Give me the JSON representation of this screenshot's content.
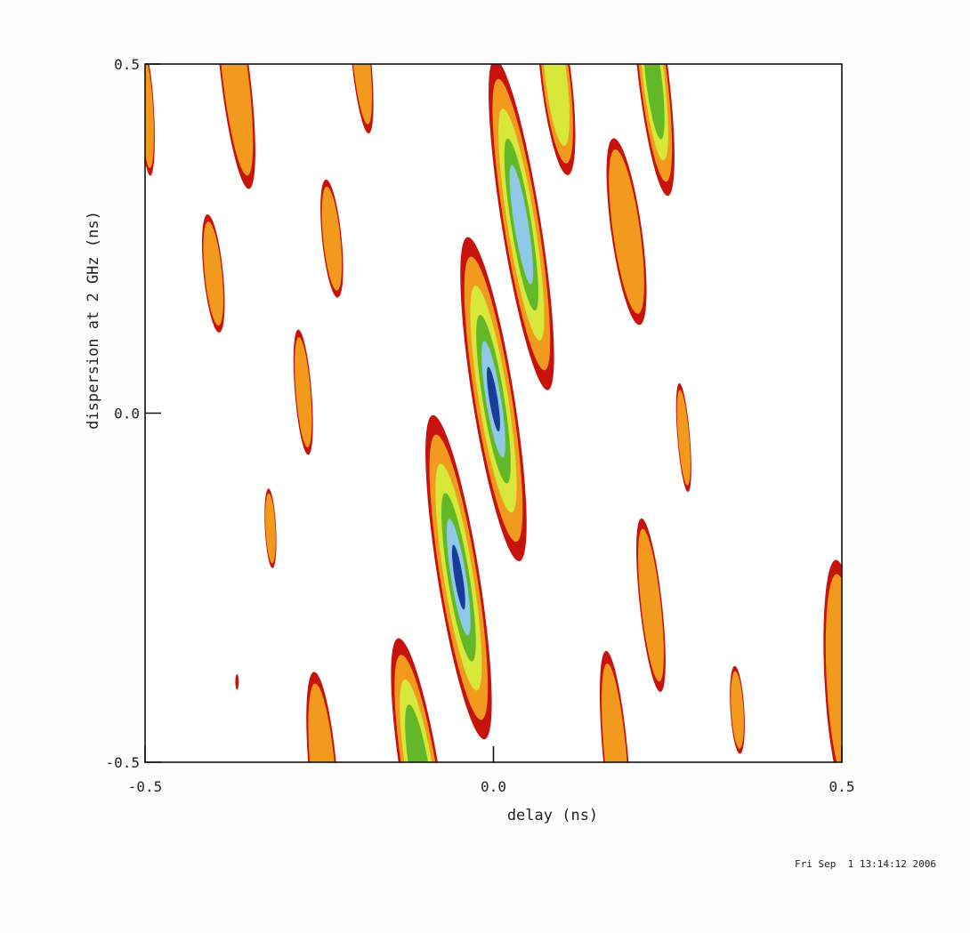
{
  "chart_data": {
    "type": "contour",
    "xlabel": "delay (ns)",
    "ylabel": "dispersion at 2 GHz (ns)",
    "xlim": [
      -0.5,
      0.5
    ],
    "ylim": [
      -0.5,
      0.5
    ],
    "x_ticks": [
      {
        "value": -0.5,
        "label": "-0.5"
      },
      {
        "value": 0.0,
        "label": "0.0"
      },
      {
        "value": 0.5,
        "label": "0.5"
      }
    ],
    "y_ticks": [
      {
        "value": 0.5,
        "label": "0.5"
      },
      {
        "value": 0.0,
        "label": "0.0"
      },
      {
        "value": -0.5,
        "label": "-0.5"
      }
    ],
    "grid": false,
    "level_colors": [
      "#c8120c",
      "#f29a1e",
      "#d7e83a",
      "#63b82a",
      "#8ec9e6",
      "#173c9a"
    ],
    "peaks": [
      {
        "x": 0.0,
        "y": 0.02,
        "hx": 0.03,
        "hy": 0.235,
        "tilt": -0.16,
        "level": 6
      },
      {
        "x": -0.05,
        "y": -0.235,
        "hx": 0.03,
        "hy": 0.235,
        "tilt": -0.16,
        "level": 6
      },
      {
        "x": 0.04,
        "y": 0.27,
        "hx": 0.028,
        "hy": 0.24,
        "tilt": -0.16,
        "level": 5
      },
      {
        "x": -0.105,
        "y": -0.52,
        "hx": 0.028,
        "hy": 0.2,
        "tilt": -0.16,
        "level": 4
      },
      {
        "x": 0.23,
        "y": 0.48,
        "hx": 0.022,
        "hy": 0.17,
        "tilt": -0.12,
        "level": 4
      },
      {
        "x": 0.09,
        "y": 0.48,
        "hx": 0.022,
        "hy": 0.14,
        "tilt": -0.12,
        "level": 3
      },
      {
        "x": -0.37,
        "y": 0.48,
        "hx": 0.021,
        "hy": 0.16,
        "tilt": -0.12,
        "level": 2
      },
      {
        "x": -0.19,
        "y": 0.51,
        "hx": 0.014,
        "hy": 0.11,
        "tilt": -0.1,
        "level": 2
      },
      {
        "x": -0.497,
        "y": 0.43,
        "hx": 0.01,
        "hy": 0.09,
        "tilt": -0.05,
        "level": 2
      },
      {
        "x": -0.232,
        "y": 0.25,
        "hx": 0.014,
        "hy": 0.085,
        "tilt": -0.1,
        "level": 2
      },
      {
        "x": 0.191,
        "y": 0.26,
        "hx": 0.022,
        "hy": 0.135,
        "tilt": -0.14,
        "level": 2
      },
      {
        "x": -0.402,
        "y": 0.2,
        "hx": 0.014,
        "hy": 0.085,
        "tilt": -0.1,
        "level": 2
      },
      {
        "x": -0.273,
        "y": 0.03,
        "hx": 0.012,
        "hy": 0.09,
        "tilt": -0.08,
        "level": 2
      },
      {
        "x": 0.273,
        "y": -0.035,
        "hx": 0.009,
        "hy": 0.078,
        "tilt": -0.08,
        "level": 2
      },
      {
        "x": -0.32,
        "y": -0.165,
        "hx": 0.008,
        "hy": 0.057,
        "tilt": -0.05,
        "level": 2
      },
      {
        "x": 0.226,
        "y": -0.275,
        "hx": 0.016,
        "hy": 0.125,
        "tilt": -0.11,
        "level": 2
      },
      {
        "x": 0.175,
        "y": -0.49,
        "hx": 0.018,
        "hy": 0.15,
        "tilt": -0.09,
        "level": 2
      },
      {
        "x": 0.35,
        "y": -0.425,
        "hx": 0.01,
        "hy": 0.063,
        "tilt": -0.06,
        "level": 2
      },
      {
        "x": 0.5,
        "y": -0.38,
        "hx": 0.025,
        "hy": 0.17,
        "tilt": -0.05,
        "level": 2
      },
      {
        "x": -0.245,
        "y": -0.51,
        "hx": 0.02,
        "hy": 0.14,
        "tilt": -0.09,
        "level": 2
      },
      {
        "x": -0.368,
        "y": -0.385,
        "hx": 0.0025,
        "hy": 0.011,
        "tilt": 0.0,
        "level": 1
      }
    ]
  },
  "timestamp": "Fri Sep  1 13:14:12 2006"
}
